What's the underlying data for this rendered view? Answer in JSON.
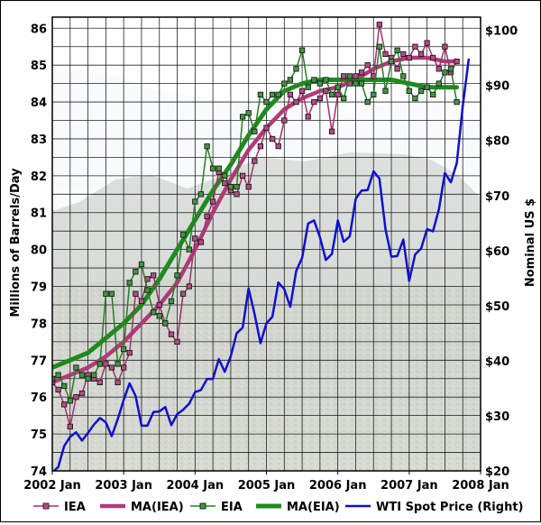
{
  "chart_data": {
    "type": "line",
    "y_left_label": "Millions of Barrels/Day",
    "y_right_label": "Nominal US $",
    "x_ticks": [
      "2002 Jan",
      "2003 Jan",
      "2004 Jan",
      "2005 Jan",
      "2006 Jan",
      "2007 Jan",
      "2008 Jan"
    ],
    "y_left_ticks": [
      "74",
      "75",
      "76",
      "77",
      "78",
      "79",
      "80",
      "81",
      "82",
      "83",
      "84",
      "85",
      "86"
    ],
    "y_right_ticks": [
      "$20",
      "$30",
      "$40",
      "$50",
      "$60",
      "$70",
      "$80",
      "$90",
      "$100"
    ],
    "xlim": [
      2002.0,
      2008.0
    ],
    "ylim_left": [
      74,
      86.3
    ],
    "ylim_right": [
      20,
      102.4
    ],
    "grid": true,
    "legend_position": "bottom",
    "background": "photo of a mountain and city (Table Mountain, Cape Town)",
    "colors": {
      "IEA": "#a0306a",
      "MA(IEA)": "#b03a78",
      "EIA": "#2a7a2a",
      "MA(EIA)": "#1f8a1f",
      "WTI": "#1010cc"
    },
    "series": [
      {
        "name": "IEA",
        "axis": "left",
        "marker": "square",
        "x": [
          2002.0,
          2002.083,
          2002.167,
          2002.25,
          2002.333,
          2002.417,
          2002.5,
          2002.583,
          2002.667,
          2002.75,
          2002.833,
          2002.917,
          2003.0,
          2003.083,
          2003.167,
          2003.25,
          2003.333,
          2003.417,
          2003.5,
          2003.583,
          2003.667,
          2003.75,
          2003.833,
          2003.917,
          2004.0,
          2004.083,
          2004.167,
          2004.25,
          2004.333,
          2004.417,
          2004.5,
          2004.583,
          2004.667,
          2004.75,
          2004.833,
          2004.917,
          2005.0,
          2005.083,
          2005.167,
          2005.25,
          2005.333,
          2005.417,
          2005.5,
          2005.583,
          2005.667,
          2005.75,
          2005.833,
          2005.917,
          2006.0,
          2006.083,
          2006.167,
          2006.25,
          2006.333,
          2006.417,
          2006.5,
          2006.583,
          2006.667,
          2006.75,
          2006.833,
          2006.917,
          2007.0,
          2007.083,
          2007.167,
          2007.25,
          2007.333,
          2007.417,
          2007.5,
          2007.583,
          2007.667
        ],
        "values": [
          76.4,
          76.2,
          75.8,
          75.2,
          76.0,
          76.1,
          76.6,
          76.5,
          76.4,
          76.9,
          76.8,
          76.4,
          76.8,
          77.2,
          78.8,
          78.6,
          79.2,
          79.3,
          78.5,
          78.0,
          77.7,
          77.5,
          78.8,
          79.0,
          80.3,
          80.2,
          80.9,
          81.3,
          82.1,
          81.8,
          81.6,
          81.5,
          82.0,
          81.7,
          82.4,
          82.8,
          83.3,
          83.0,
          82.8,
          83.5,
          84.2,
          84.0,
          84.3,
          83.6,
          84.0,
          84.1,
          84.3,
          83.2,
          84.2,
          84.7,
          84.5,
          84.7,
          84.8,
          85.0,
          84.7,
          86.1,
          85.3,
          85.2,
          84.9,
          85.3,
          85.2,
          85.5,
          85.3,
          85.6,
          85.2,
          84.9,
          85.5,
          84.8,
          85.1
        ]
      },
      {
        "name": "MA(IEA)",
        "axis": "left",
        "x": [
          2002.0,
          2002.25,
          2002.5,
          2002.75,
          2003.0,
          2003.25,
          2003.5,
          2003.75,
          2004.0,
          2004.25,
          2004.5,
          2004.75,
          2005.0,
          2005.25,
          2005.5,
          2005.75,
          2006.0,
          2006.25,
          2006.5,
          2006.75,
          2007.0,
          2007.25,
          2007.5,
          2007.667
        ],
        "values": [
          76.4,
          76.6,
          76.8,
          77.1,
          77.5,
          78.0,
          78.5,
          79.1,
          80.0,
          81.0,
          81.9,
          82.7,
          83.3,
          83.8,
          84.1,
          84.3,
          84.4,
          84.6,
          84.9,
          85.1,
          85.2,
          85.2,
          85.1,
          85.1
        ]
      },
      {
        "name": "EIA",
        "axis": "left",
        "marker": "square",
        "x": [
          2002.0,
          2002.083,
          2002.167,
          2002.25,
          2002.333,
          2002.417,
          2002.5,
          2002.583,
          2002.667,
          2002.75,
          2002.833,
          2002.917,
          2003.0,
          2003.083,
          2003.167,
          2003.25,
          2003.333,
          2003.417,
          2003.5,
          2003.583,
          2003.667,
          2003.75,
          2003.833,
          2003.917,
          2004.0,
          2004.083,
          2004.167,
          2004.25,
          2004.333,
          2004.417,
          2004.5,
          2004.583,
          2004.667,
          2004.75,
          2004.833,
          2004.917,
          2005.0,
          2005.083,
          2005.167,
          2005.25,
          2005.333,
          2005.417,
          2005.5,
          2005.583,
          2005.667,
          2005.75,
          2005.833,
          2005.917,
          2006.0,
          2006.083,
          2006.167,
          2006.25,
          2006.333,
          2006.417,
          2006.5,
          2006.583,
          2006.667,
          2006.75,
          2006.833,
          2006.917,
          2007.0,
          2007.083,
          2007.167,
          2007.25,
          2007.333,
          2007.417,
          2007.5,
          2007.583,
          2007.667
        ],
        "values": [
          76.5,
          76.6,
          76.3,
          75.9,
          76.8,
          76.6,
          76.5,
          76.6,
          76.9,
          78.8,
          78.8,
          76.9,
          77.3,
          79.1,
          79.4,
          79.6,
          78.9,
          78.3,
          78.2,
          78.0,
          78.6,
          79.3,
          80.4,
          80.0,
          81.3,
          81.5,
          82.8,
          82.2,
          82.2,
          82.0,
          81.7,
          81.7,
          83.6,
          83.7,
          83.2,
          84.2,
          84.0,
          84.2,
          84.2,
          84.5,
          84.6,
          84.9,
          85.4,
          84.4,
          84.6,
          84.5,
          84.6,
          84.2,
          84.4,
          84.1,
          84.7,
          84.5,
          84.5,
          84.0,
          84.2,
          85.5,
          84.3,
          85.1,
          85.4,
          84.7,
          84.3,
          84.1,
          84.3,
          84.4,
          84.2,
          84.5,
          84.8,
          84.9,
          84.0
        ]
      },
      {
        "name": "MA(EIA)",
        "axis": "left",
        "x": [
          2002.0,
          2002.25,
          2002.5,
          2002.75,
          2003.0,
          2003.25,
          2003.5,
          2003.75,
          2004.0,
          2004.25,
          2004.5,
          2004.75,
          2005.0,
          2005.25,
          2005.5,
          2005.75,
          2006.0,
          2006.25,
          2006.5,
          2006.75,
          2007.0,
          2007.25,
          2007.5,
          2007.667
        ],
        "values": [
          76.8,
          77.0,
          77.2,
          77.6,
          78.0,
          78.5,
          79.2,
          80.0,
          80.8,
          81.6,
          82.3,
          83.1,
          83.8,
          84.3,
          84.5,
          84.6,
          84.6,
          84.6,
          84.6,
          84.6,
          84.5,
          84.4,
          84.4,
          84.4
        ]
      },
      {
        "name": "WTI Spot Price (Right)",
        "axis": "right",
        "x": [
          2002.0,
          2002.083,
          2002.167,
          2002.25,
          2002.333,
          2002.417,
          2002.5,
          2002.583,
          2002.667,
          2002.75,
          2002.833,
          2002.917,
          2003.0,
          2003.083,
          2003.167,
          2003.25,
          2003.333,
          2003.417,
          2003.5,
          2003.583,
          2003.667,
          2003.75,
          2003.833,
          2003.917,
          2004.0,
          2004.083,
          2004.167,
          2004.25,
          2004.333,
          2004.417,
          2004.5,
          2004.583,
          2004.667,
          2004.75,
          2004.833,
          2004.917,
          2005.0,
          2005.083,
          2005.167,
          2005.25,
          2005.333,
          2005.417,
          2005.5,
          2005.583,
          2005.667,
          2005.75,
          2005.833,
          2005.917,
          2006.0,
          2006.083,
          2006.167,
          2006.25,
          2006.333,
          2006.417,
          2006.5,
          2006.583,
          2006.667,
          2006.75,
          2006.833,
          2006.917,
          2007.0,
          2007.083,
          2007.167,
          2007.25,
          2007.333,
          2007.417,
          2007.5,
          2007.583,
          2007.667,
          2007.75,
          2007.833
        ],
        "values": [
          19.7,
          20.7,
          24.5,
          26.2,
          27.0,
          25.5,
          26.9,
          28.4,
          29.6,
          28.8,
          26.3,
          29.4,
          32.9,
          35.9,
          33.6,
          28.2,
          28.2,
          30.7,
          30.8,
          31.6,
          28.3,
          30.3,
          31.1,
          32.2,
          34.3,
          34.7,
          36.7,
          36.7,
          40.3,
          38.0,
          40.8,
          45.0,
          46.0,
          53.1,
          48.5,
          43.2,
          46.8,
          48.0,
          54.2,
          53.0,
          49.8,
          56.3,
          58.7,
          64.9,
          65.5,
          62.4,
          58.3,
          59.4,
          65.5,
          61.6,
          62.6,
          69.4,
          70.9,
          71.0,
          74.4,
          73.1,
          63.9,
          58.9,
          59.0,
          62.0,
          54.5,
          59.3,
          60.4,
          63.9,
          63.5,
          67.5,
          74.1,
          72.4,
          75.9,
          86.2,
          94.7
        ]
      }
    ]
  }
}
